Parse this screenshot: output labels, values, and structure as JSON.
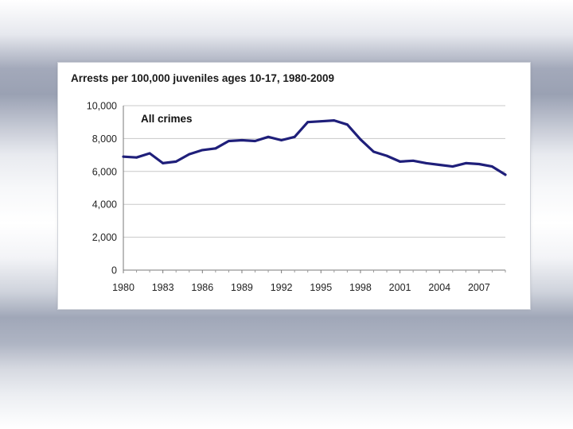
{
  "slide": {
    "chart_title": "Arrests per 100,000 juveniles ages 10-17, 1980-2009"
  },
  "chart_data": {
    "type": "line",
    "title": "Arrests per 100,000 juveniles ages 10-17, 1980-2009",
    "xlabel": "",
    "ylabel": "",
    "annotation": "All crimes",
    "xlim": [
      1980,
      2009
    ],
    "ylim": [
      0,
      10000
    ],
    "x_ticks": [
      1980,
      1983,
      1986,
      1989,
      1992,
      1995,
      1998,
      2001,
      2004,
      2007
    ],
    "x_tick_labels": [
      "1980",
      "1983",
      "1986",
      "1989",
      "1992",
      "1995",
      "1998",
      "2001",
      "2004",
      "2007"
    ],
    "y_ticks": [
      0,
      2000,
      4000,
      6000,
      8000,
      10000
    ],
    "y_tick_labels": [
      "0",
      "2,000",
      "4,000",
      "6,000",
      "8,000",
      "10,000"
    ],
    "grid": "horizontal",
    "line_color": "#1f1f7a",
    "series": [
      {
        "x": [
          1980,
          1981,
          1982,
          1983,
          1984,
          1985,
          1986,
          1987,
          1988,
          1989,
          1990,
          1991,
          1992,
          1993,
          1994,
          1995,
          1996,
          1997,
          1998,
          1999,
          2000,
          2001,
          2002,
          2003,
          2004,
          2005,
          2006,
          2007,
          2008,
          2009
        ],
        "values": [
          6900,
          6850,
          7100,
          6500,
          6600,
          7050,
          7300,
          7400,
          7850,
          7900,
          7850,
          8100,
          7900,
          8100,
          9000,
          9050,
          9100,
          8850,
          7950,
          7200,
          6950,
          6600,
          6650,
          6500,
          6400,
          6300,
          6500,
          6450,
          6300,
          5800
        ]
      }
    ]
  }
}
